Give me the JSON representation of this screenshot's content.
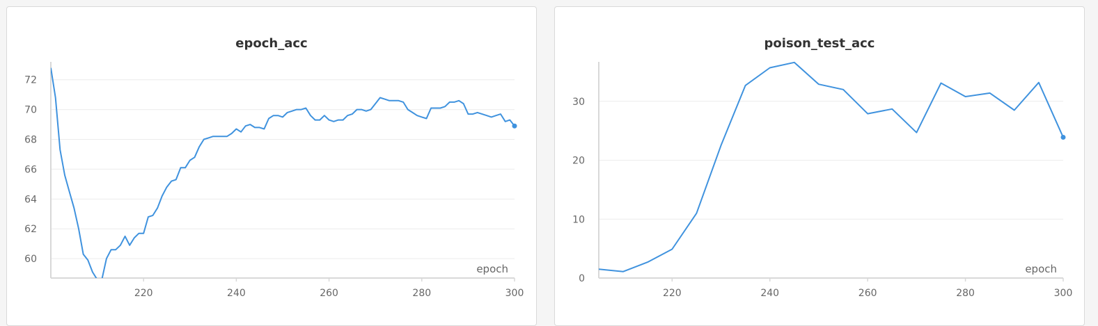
{
  "colors": {
    "line": "#3f92de",
    "grid": "#ececec",
    "axis": "#d8d8d8",
    "text": "#666666"
  },
  "chart_data": [
    {
      "type": "line",
      "title": "epoch_acc",
      "xlabel": "epoch",
      "ylabel": "",
      "xlim": [
        200,
        300
      ],
      "ylim": [
        58.7,
        73.2
      ],
      "xticks": [
        220,
        240,
        260,
        280,
        300
      ],
      "yticks": [
        60,
        62,
        64,
        66,
        68,
        70,
        72
      ],
      "grid": true,
      "series": [
        {
          "x": [
            200,
            201,
            202,
            203,
            204,
            205,
            206,
            207,
            208,
            209,
            210,
            211,
            212,
            213,
            214,
            215,
            216,
            217,
            218,
            219,
            220,
            221,
            222,
            223,
            224,
            225,
            226,
            227,
            228,
            229,
            230,
            231,
            232,
            233,
            234,
            235,
            236,
            237,
            238,
            239,
            240,
            241,
            242,
            243,
            244,
            245,
            246,
            247,
            248,
            249,
            250,
            251,
            252,
            253,
            254,
            255,
            256,
            257,
            258,
            259,
            260,
            261,
            262,
            263,
            264,
            265,
            266,
            267,
            268,
            269,
            270,
            271,
            272,
            273,
            274,
            275,
            276,
            277,
            278,
            279,
            280,
            281,
            282,
            283,
            284,
            285,
            286,
            287,
            288,
            289,
            290,
            291,
            292,
            293,
            294,
            295,
            296,
            297,
            298,
            299,
            300
          ],
          "y": [
            72.8,
            70.8,
            67.3,
            65.6,
            64.5,
            63.4,
            62.0,
            60.3,
            59.9,
            59.1,
            58.6,
            58.6,
            60.0,
            60.6,
            60.6,
            60.9,
            61.5,
            60.9,
            61.4,
            61.7,
            61.7,
            62.8,
            62.9,
            63.4,
            64.2,
            64.8,
            65.2,
            65.3,
            66.1,
            66.1,
            66.6,
            66.8,
            67.5,
            68.0,
            68.1,
            68.2,
            68.2,
            68.2,
            68.2,
            68.4,
            68.7,
            68.5,
            68.9,
            69.0,
            68.8,
            68.8,
            68.7,
            69.4,
            69.6,
            69.6,
            69.5,
            69.8,
            69.9,
            70.0,
            70.0,
            70.1,
            69.6,
            69.3,
            69.3,
            69.6,
            69.3,
            69.2,
            69.3,
            69.3,
            69.6,
            69.7,
            70.0,
            70.0,
            69.9,
            70.0,
            70.4,
            70.8,
            70.7,
            70.6,
            70.6,
            70.6,
            70.5,
            70.0,
            69.8,
            69.6,
            69.5,
            69.4,
            70.1,
            70.1,
            70.1,
            70.2,
            70.5,
            70.5,
            70.6,
            70.4,
            69.7,
            69.7,
            69.8,
            69.7,
            69.6,
            69.5,
            69.6,
            69.7,
            69.2,
            69.3,
            68.9
          ]
        }
      ]
    },
    {
      "type": "line",
      "title": "poison_test_acc",
      "xlabel": "epoch",
      "ylabel": "",
      "xlim": [
        205,
        300
      ],
      "ylim": [
        0,
        36.7
      ],
      "xticks": [
        220,
        240,
        260,
        280,
        300
      ],
      "yticks": [
        0,
        10,
        20,
        30
      ],
      "grid": true,
      "series": [
        {
          "x": [
            205,
            210,
            215,
            220,
            225,
            230,
            235,
            240,
            245,
            250,
            255,
            260,
            265,
            270,
            275,
            280,
            285,
            290,
            295,
            300
          ],
          "y": [
            1.5,
            1.1,
            2.7,
            4.9,
            11.0,
            22.5,
            32.7,
            35.7,
            36.6,
            32.9,
            32.0,
            27.9,
            28.7,
            24.7,
            33.1,
            30.8,
            31.4,
            28.5,
            33.2,
            23.9
          ]
        }
      ]
    }
  ]
}
